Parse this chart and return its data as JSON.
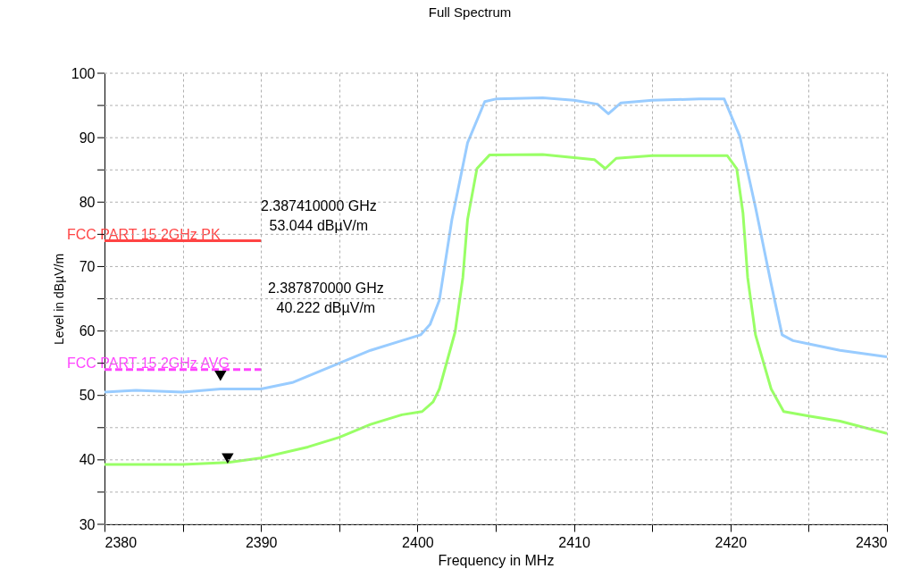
{
  "chart_data": {
    "type": "line",
    "title": "Full Spectrum",
    "xlabel": "Frequency in MHz",
    "ylabel": "Level in dBµV/m",
    "xlim": [
      2380,
      2430
    ],
    "ylim": [
      30,
      100
    ],
    "xticks": [
      2380,
      {
        "value": 2385,
        "label": null
      },
      2390,
      {
        "value": 2395,
        "label": null
      },
      2400,
      {
        "value": 2405,
        "label": null
      },
      2410,
      {
        "value": 2415,
        "label": null
      },
      2420,
      {
        "value": 2425,
        "label": null
      },
      2430
    ],
    "yticks": [
      30,
      {
        "value": 35,
        "label": null
      },
      40,
      {
        "value": 45,
        "label": null
      },
      50,
      {
        "value": 55,
        "label": null
      },
      60,
      {
        "value": 65,
        "label": null
      },
      70,
      {
        "value": 75,
        "label": null
      },
      80,
      {
        "value": 85,
        "label": null
      },
      90,
      {
        "value": 95,
        "label": null
      },
      100
    ],
    "grid": true,
    "series": [
      {
        "color": "#99ccff",
        "line_style": "solid",
        "x": [
          2380,
          2382,
          2385,
          2387.4,
          2390,
          2392,
          2395,
          2397,
          2399,
          2400.2,
          2400.8,
          2401.4,
          2402.2,
          2403.2,
          2404.3,
          2405,
          2408,
          2410,
          2411.5,
          2412.2,
          2413,
          2415,
          2418,
          2419.6,
          2420.6,
          2421.6,
          2422.6,
          2423.3,
          2424,
          2425,
          2427,
          2430
        ],
        "values": [
          50.5,
          50.8,
          50.5,
          51,
          51,
          52,
          55,
          57,
          58.5,
          59.4,
          61,
          64.8,
          77.3,
          89.2,
          95.6,
          96,
          96.2,
          95.8,
          95.2,
          93.7,
          95.4,
          95.8,
          96,
          96,
          90.2,
          79.2,
          67.3,
          59.4,
          58.5,
          58,
          57,
          56
        ]
      },
      {
        "color": "#99ff66",
        "line_style": "solid",
        "x": [
          2380,
          2383,
          2385,
          2387.9,
          2390,
          2393,
          2395,
          2397,
          2399,
          2400.3,
          2401,
          2401.4,
          2402.4,
          2402.9,
          2403.2,
          2403.8,
          2404.6,
          2408,
          2411.3,
          2412,
          2412.7,
          2415,
          2419.8,
          2420.4,
          2420.8,
          2421.1,
          2421.6,
          2422.6,
          2423.4,
          2425,
          2427,
          2430
        ],
        "values": [
          39.3,
          39.3,
          39.3,
          39.6,
          40.3,
          42,
          43.5,
          45.5,
          47,
          47.5,
          49,
          51,
          59.8,
          68.3,
          77.3,
          85.2,
          87.3,
          87.4,
          86.6,
          85.2,
          86.8,
          87.2,
          87.2,
          85.2,
          78.3,
          68.3,
          59.4,
          51,
          47.5,
          46.8,
          46,
          44.1
        ]
      },
      {
        "type": "line",
        "name": "FCC PART 15 2GHz   PK",
        "color": "#ff4444",
        "line_style": "solid",
        "x": [
          2380,
          2390
        ],
        "values": [
          74,
          74
        ]
      },
      {
        "type": "line",
        "name": "FCC PART 15 2GHz   AVG",
        "color": "#ff44ff",
        "line_style": "dashed",
        "x": [
          2380,
          2390
        ],
        "values": [
          54,
          54
        ]
      },
      {
        "type": "scatter",
        "marker": "triangle",
        "color": "#000000",
        "x": [
          2387.41
        ],
        "values": [
          53.044
        ]
      },
      {
        "type": "scatter",
        "marker": "triangle",
        "color": "#000000",
        "x": [
          2387.87
        ],
        "values": [
          40.222
        ]
      }
    ],
    "annotations": [
      "2.387410000 GHz\n53.044 dBµV/m",
      "2.387870000 GHz\n40.222 dBµV/m"
    ]
  }
}
